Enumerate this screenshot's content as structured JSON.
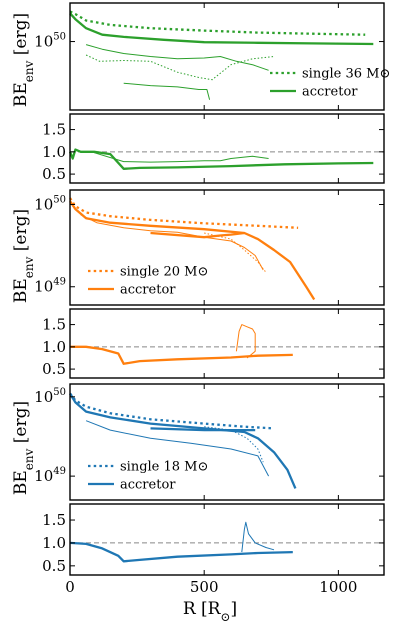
{
  "chart_data": [
    {
      "type": "line",
      "ylabel": "BE_env [erg]",
      "ylabel_main": "BE",
      "ylabel_sub": "env",
      "ylabel_unit": " [erg]",
      "yscale": "log",
      "ylim": [
        3.2e+49,
        1.9e+50
      ],
      "xlim": [
        0,
        1170
      ],
      "yticks": [
        {
          "value": 1e+50,
          "base": "10",
          "exp": "50"
        }
      ],
      "grid": false,
      "color": "#2ca02c",
      "legend_position": "right",
      "series": [
        {
          "name": "single 36 M⊙",
          "style": "dotted",
          "points": [
            [
              0,
              1.65e+50
            ],
            [
              20,
              1.58e+50
            ],
            [
              60,
              1.42e+50
            ],
            [
              150,
              1.32e+50
            ],
            [
              300,
              1.25e+50
            ],
            [
              500,
              1.2e+50
            ],
            [
              700,
              1.16e+50
            ],
            [
              900,
              1.14e+50
            ],
            [
              1100,
              1.12e+50
            ]
          ]
        },
        {
          "name": "accretor",
          "style": "solid",
          "points": [
            [
              0,
              1.6e+50
            ],
            [
              20,
              1.45e+50
            ],
            [
              60,
              1.25e+50
            ],
            [
              120,
              1.12e+50
            ],
            [
              200,
              1.08e+50
            ],
            [
              350,
              1.03e+50
            ],
            [
              500,
              9.9e+49
            ],
            [
              700,
              9.8e+49
            ],
            [
              900,
              9.7e+49
            ],
            [
              1130,
              9.6e+49
            ]
          ]
        },
        {
          "name": "",
          "style": "dotted-thin",
          "points": [
            [
              60,
              8e+49
            ],
            [
              110,
              7.2e+49
            ],
            [
              200,
              7.3e+49
            ],
            [
              300,
              7.2e+49
            ],
            [
              400,
              6e+49
            ],
            [
              480,
              5.5e+49
            ],
            [
              530,
              5.3e+49
            ],
            [
              600,
              6.8e+49
            ],
            [
              680,
              7.5e+49
            ],
            [
              760,
              7.8e+49
            ]
          ]
        },
        {
          "name": "",
          "style": "solid-thin",
          "points": [
            [
              60,
              9.5e+49
            ],
            [
              120,
              8.8e+49
            ],
            [
              200,
              8.2e+49
            ],
            [
              300,
              7.8e+49
            ],
            [
              400,
              7.5e+49
            ],
            [
              500,
              7.6e+49
            ],
            [
              560,
              7.8e+49
            ],
            [
              620,
              7.2e+49
            ],
            [
              680,
              6.8e+49
            ],
            [
              740,
              6.2e+49
            ]
          ]
        },
        {
          "name": "",
          "style": "solid-thin",
          "points": [
            [
              200,
              5e+49
            ],
            [
              300,
              4.8e+49
            ],
            [
              400,
              4.7e+49
            ],
            [
              480,
              4.5e+49
            ],
            [
              510,
              4.5e+49
            ],
            [
              520,
              3.8e+49
            ]
          ]
        }
      ]
    },
    {
      "type": "line",
      "ylim": [
        0.3,
        1.85
      ],
      "xlim": [
        0,
        1170
      ],
      "yticks": [
        0.5,
        1.0,
        1.5
      ],
      "ytick_labels": [
        "0.5",
        "1.0",
        "1.5"
      ],
      "reference_line": 1.0,
      "color": "#2ca02c",
      "series": [
        {
          "name": "",
          "style": "solid",
          "points": [
            [
              0,
              1.0
            ],
            [
              10,
              0.85
            ],
            [
              20,
              1.05
            ],
            [
              40,
              1.0
            ],
            [
              90,
              1.0
            ],
            [
              150,
              0.95
            ],
            [
              200,
              0.62
            ],
            [
              260,
              0.64
            ],
            [
              400,
              0.65
            ],
            [
              600,
              0.68
            ],
            [
              800,
              0.72
            ],
            [
              1000,
              0.74
            ],
            [
              1130,
              0.75
            ]
          ]
        },
        {
          "name": "",
          "style": "solid-thin",
          "points": [
            [
              90,
              0.98
            ],
            [
              200,
              0.78
            ],
            [
              300,
              0.77
            ],
            [
              400,
              0.78
            ],
            [
              500,
              0.8
            ],
            [
              560,
              0.8
            ],
            [
              600,
              0.85
            ],
            [
              680,
              0.9
            ],
            [
              740,
              0.85
            ]
          ]
        }
      ]
    },
    {
      "type": "line",
      "ylabel": "BE_env [erg]",
      "ylabel_main": "BE",
      "ylabel_sub": "env",
      "ylabel_unit": " [erg]",
      "yscale": "log",
      "ylim": [
        6e+48,
        1.5e+50
      ],
      "xlim": [
        0,
        1170
      ],
      "yticks": [
        {
          "value": 1e+50,
          "base": "10",
          "exp": "50"
        },
        {
          "value": 1e+49,
          "base": "10",
          "exp": "49"
        }
      ],
      "grid": false,
      "color": "#ff7f0e",
      "legend_position": "left",
      "series": [
        {
          "name": "single 20 M⊙",
          "style": "dotted",
          "points": [
            [
              0,
              1.2e+50
            ],
            [
              20,
              9.5e+49
            ],
            [
              60,
              8e+49
            ],
            [
              150,
              7.2e+49
            ],
            [
              300,
              6.5e+49
            ],
            [
              500,
              5.9e+49
            ],
            [
              700,
              5.5e+49
            ],
            [
              850,
              5.2e+49
            ]
          ]
        },
        {
          "name": "accretor",
          "style": "solid",
          "points": [
            [
              0,
              1.1e+50
            ],
            [
              20,
              8.8e+49
            ],
            [
              60,
              6.8e+49
            ],
            [
              150,
              6e+49
            ],
            [
              300,
              5.5e+49
            ],
            [
              500,
              5e+49
            ],
            [
              650,
              4.5e+49
            ],
            [
              700,
              3.8e+49
            ],
            [
              760,
              2.8e+49
            ],
            [
              820,
              2e+49
            ],
            [
              880,
              1e+49
            ],
            [
              910,
              7e+48
            ]
          ]
        },
        {
          "name": "",
          "style": "solid",
          "points": [
            [
              300,
              4.5e+49
            ],
            [
              500,
              4e+49
            ],
            [
              560,
              4.2e+49
            ],
            [
              600,
              4.3e+49
            ],
            [
              650,
              4.5e+49
            ]
          ]
        },
        {
          "name": "",
          "style": "solid-thin",
          "points": [
            [
              40,
              7.5e+49
            ],
            [
              100,
              6e+49
            ],
            [
              200,
              5.2e+49
            ],
            [
              300,
              4.8e+49
            ],
            [
              400,
              4.6e+49
            ],
            [
              500,
              4e+49
            ],
            [
              600,
              3.6e+49
            ],
            [
              650,
              3e+49
            ],
            [
              690,
              2.4e+49
            ],
            [
              720,
              1.6e+49
            ]
          ]
        },
        {
          "name": "",
          "style": "dotted-thin",
          "points": [
            [
              500,
              4.5e+49
            ],
            [
              600,
              3.8e+49
            ],
            [
              650,
              2.8e+49
            ],
            [
              700,
              2e+49
            ],
            [
              730,
              1.5e+49
            ]
          ]
        }
      ]
    },
    {
      "type": "line",
      "ylim": [
        0.3,
        1.85
      ],
      "xlim": [
        0,
        1170
      ],
      "yticks": [
        0.5,
        1.0,
        1.5
      ],
      "ytick_labels": [
        "0.5",
        "1.0",
        "1.5"
      ],
      "reference_line": 1.0,
      "color": "#ff7f0e",
      "series": [
        {
          "name": "",
          "style": "solid",
          "points": [
            [
              0,
              1.0
            ],
            [
              60,
              1.0
            ],
            [
              120,
              0.95
            ],
            [
              180,
              0.85
            ],
            [
              200,
              0.62
            ],
            [
              260,
              0.68
            ],
            [
              400,
              0.72
            ],
            [
              600,
              0.76
            ],
            [
              700,
              0.8
            ],
            [
              830,
              0.82
            ]
          ]
        },
        {
          "name": "",
          "style": "solid-thin",
          "points": [
            [
              620,
              0.9
            ],
            [
              630,
              1.35
            ],
            [
              640,
              1.5
            ],
            [
              660,
              1.45
            ],
            [
              680,
              1.4
            ],
            [
              690,
              1.3
            ],
            [
              690,
              0.9
            ],
            [
              660,
              0.75
            ]
          ]
        }
      ]
    },
    {
      "type": "line",
      "ylabel": "BE_env [erg]",
      "ylabel_main": "BE",
      "ylabel_sub": "env",
      "ylabel_unit": " [erg]",
      "yscale": "log",
      "ylim": [
        5e+48,
        1.45e+50
      ],
      "xlim": [
        0,
        1170
      ],
      "yticks": [
        {
          "value": 1e+50,
          "base": "10",
          "exp": "50"
        },
        {
          "value": 1e+49,
          "base": "10",
          "exp": "49"
        }
      ],
      "grid": false,
      "color": "#1f77b4",
      "legend_position": "left",
      "series": [
        {
          "name": "single 18 M⊙",
          "style": "dotted",
          "points": [
            [
              0,
              1.1e+50
            ],
            [
              20,
              9e+49
            ],
            [
              60,
              7.5e+49
            ],
            [
              150,
              6.2e+49
            ],
            [
              300,
              5.2e+49
            ],
            [
              500,
              4.6e+49
            ],
            [
              650,
              4.2e+49
            ],
            [
              760,
              4e+49
            ]
          ]
        },
        {
          "name": "accretor",
          "style": "solid",
          "points": [
            [
              0,
              1.1e+50
            ],
            [
              20,
              8.5e+49
            ],
            [
              60,
              6.5e+49
            ],
            [
              150,
              5.5e+49
            ],
            [
              300,
              4.6e+49
            ],
            [
              500,
              4e+49
            ],
            [
              650,
              3.6e+49
            ],
            [
              700,
              3e+49
            ],
            [
              760,
              2e+49
            ],
            [
              810,
              1.2e+49
            ],
            [
              840,
              7e+48
            ]
          ]
        },
        {
          "name": "",
          "style": "solid",
          "points": [
            [
              300,
              4e+49
            ],
            [
              500,
              3.8e+49
            ],
            [
              600,
              3.8e+49
            ],
            [
              690,
              3.8e+49
            ]
          ]
        },
        {
          "name": "",
          "style": "solid-thin",
          "points": [
            [
              60,
              5e+49
            ],
            [
              150,
              3.8e+49
            ],
            [
              300,
              3e+49
            ],
            [
              450,
              2.6e+49
            ],
            [
              600,
              2.2e+49
            ],
            [
              700,
              1.8e+49
            ],
            [
              740,
              1e+49
            ]
          ]
        },
        {
          "name": "",
          "style": "dotted-thin",
          "points": [
            [
              500,
              4.2e+49
            ],
            [
              600,
              3.8e+49
            ],
            [
              660,
              3e+49
            ],
            [
              700,
              2.2e+49
            ],
            [
              720,
              1.5e+49
            ]
          ]
        }
      ]
    },
    {
      "type": "line",
      "ylim": [
        0.3,
        1.85
      ],
      "xlim": [
        0,
        1170
      ],
      "yticks": [
        0.5,
        1.0,
        1.5
      ],
      "ytick_labels": [
        "0.5",
        "1.0",
        "1.5"
      ],
      "reference_line": 1.0,
      "color": "#1f77b4",
      "series": [
        {
          "name": "",
          "style": "solid",
          "points": [
            [
              0,
              1.0
            ],
            [
              60,
              0.98
            ],
            [
              120,
              0.88
            ],
            [
              180,
              0.72
            ],
            [
              200,
              0.6
            ],
            [
              260,
              0.63
            ],
            [
              400,
              0.7
            ],
            [
              600,
              0.75
            ],
            [
              700,
              0.78
            ],
            [
              830,
              0.8
            ]
          ]
        },
        {
          "name": "",
          "style": "solid-thin",
          "points": [
            [
              640,
              0.8
            ],
            [
              650,
              1.3
            ],
            [
              655,
              1.45
            ],
            [
              665,
              1.2
            ],
            [
              690,
              1.0
            ],
            [
              730,
              0.9
            ],
            [
              760,
              0.85
            ]
          ]
        }
      ]
    }
  ],
  "shared_x_axis": {
    "xlabel": "R [R⊙]",
    "xlabel_main": "R [R",
    "xlabel_sub": "⊙",
    "xlabel_close": "]",
    "xticks": [
      0,
      500,
      1000
    ],
    "xtick_labels": [
      "0",
      "500",
      "1000"
    ]
  }
}
